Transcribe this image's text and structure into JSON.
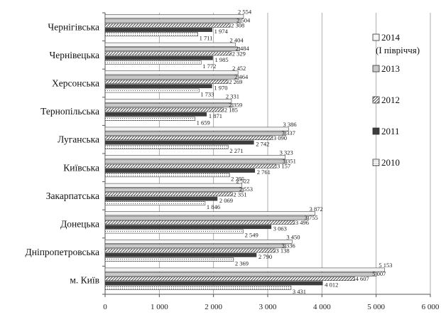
{
  "chart_data": {
    "type": "bar",
    "orientation": "horizontal",
    "categories": [
      "Чернігівська",
      "Чернівецька",
      "Херсонська",
      "Тернопільська",
      "Луганська",
      "Київська",
      "Закарпатська",
      "Донецька",
      "Дніпропетровська",
      "м. Київ"
    ],
    "series": [
      {
        "name": "2014 (І півріччя)",
        "color": "#f4f4f4",
        "pattern": "light",
        "values": [
          2554,
          2404,
          2452,
          2331,
          3386,
          3323,
          2522,
          3872,
          3450,
          5153
        ]
      },
      {
        "name": "2013",
        "color": "#c8c8c8",
        "pattern": "gray",
        "values": [
          2504,
          2484,
          2464,
          2359,
          3337,
          3351,
          2553,
          3755,
          3336,
          5007
        ]
      },
      {
        "name": "2012",
        "color": "#ffffff",
        "pattern": "hatch",
        "values": [
          2308,
          2329,
          2269,
          2185,
          3090,
          3157,
          2351,
          3496,
          3138,
          4607
        ]
      },
      {
        "name": "2011",
        "color": "#3d3d3d",
        "pattern": "dark",
        "values": [
          1974,
          1985,
          1970,
          1871,
          2742,
          2761,
          2069,
          3063,
          2790,
          4012
        ]
      },
      {
        "name": "2010",
        "color": "#ffffff",
        "pattern": "dotted",
        "values": [
          1711,
          1772,
          1733,
          1659,
          2271,
          2295,
          1846,
          2549,
          2369,
          3431
        ]
      }
    ],
    "value_labels": [
      [
        "2 554",
        "2 504",
        "2 308",
        "1 974",
        "1 711"
      ],
      [
        "2 404",
        "2 484",
        "2 329",
        "1 985",
        "1 772"
      ],
      [
        "2 452",
        "2 464",
        "2 269",
        "1 970",
        "1 733"
      ],
      [
        "2 331",
        "2 359",
        "2 185",
        "1 871",
        "1 659"
      ],
      [
        "3 386",
        "3 337",
        "3 090",
        "2 742",
        "2 271"
      ],
      [
        "3 323",
        "3 351",
        "3 157",
        "2 761",
        "2 295"
      ],
      [
        "2 522",
        "2 553",
        "2 351",
        "2 069",
        "1 846"
      ],
      [
        "3 872",
        "3 755",
        "3 496",
        "3 063",
        "2 549"
      ],
      [
        "3 450",
        "3 336",
        "3 138",
        "2 790",
        "2 369"
      ],
      [
        "5 153",
        "5 007",
        "4 607",
        "4 012",
        "3 431"
      ]
    ],
    "xlim": [
      0,
      6000
    ],
    "xticks": [
      0,
      1000,
      2000,
      3000,
      4000,
      5000,
      6000
    ],
    "xtick_labels": [
      "0",
      "1 000",
      "2 000",
      "3 000",
      "4 000",
      "5 000",
      "6 000"
    ],
    "grid": true,
    "legend_position": "right",
    "legend": [
      {
        "line1": "2014",
        "line2": "(І півріччя)"
      },
      {
        "line1": "2013",
        "line2": ""
      },
      {
        "line1": "2012",
        "line2": ""
      },
      {
        "line1": "2011",
        "line2": ""
      },
      {
        "line1": "2010",
        "line2": ""
      }
    ]
  }
}
